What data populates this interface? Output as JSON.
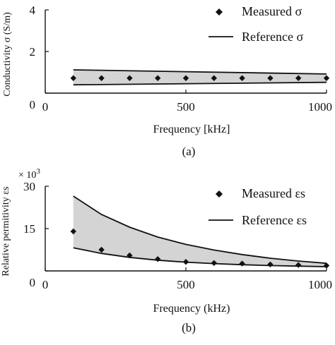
{
  "chart_data": [
    {
      "type": "line",
      "panel_caption": "(a)",
      "xlabel": "Frequency [kHz]",
      "ylabel": "Conductivity σ (S/m)",
      "xlim": [
        0,
        1000
      ],
      "ylim": [
        0,
        4
      ],
      "x_ticks": [
        "0",
        "500",
        "1000"
      ],
      "y_ticks": [
        "0",
        "2",
        "4"
      ],
      "legend": {
        "placement": "top-right",
        "measured": "Measured",
        "measured_symbol": "σ",
        "reference": "Reference",
        "reference_symbol": "σ"
      },
      "measured": {
        "x": [
          100,
          200,
          300,
          400,
          500,
          600,
          700,
          800,
          900,
          1000
        ],
        "y": [
          0.72,
          0.72,
          0.72,
          0.72,
          0.72,
          0.72,
          0.72,
          0.72,
          0.72,
          0.72
        ]
      },
      "reference_band": {
        "x": [
          100,
          1000
        ],
        "upper": [
          1.12,
          0.92
        ],
        "lower": [
          0.4,
          0.52
        ]
      }
    },
    {
      "type": "line",
      "panel_caption": "(b)",
      "xlabel": "Frequency (kHz)",
      "ylabel": "Relative permitivity εs",
      "multiplier": "× 10",
      "multiplier_exp": "3",
      "xlim": [
        0,
        1000
      ],
      "ylim": [
        0,
        30
      ],
      "x_ticks": [
        "0",
        "500",
        "1000"
      ],
      "y_ticks": [
        "0",
        "15",
        "30"
      ],
      "legend": {
        "placement": "top-right",
        "measured": "Measured",
        "measured_symbol": "εs",
        "reference": "Reference",
        "reference_symbol": "εs"
      },
      "measured": {
        "x": [
          100,
          200,
          300,
          400,
          500,
          600,
          700,
          800,
          900,
          1000
        ],
        "y": [
          14.0,
          7.5,
          5.5,
          4.2,
          3.2,
          2.8,
          2.6,
          2.3,
          2.1,
          1.9
        ]
      },
      "reference_band": {
        "x": [
          100,
          200,
          300,
          400,
          500,
          600,
          700,
          800,
          900,
          1000
        ],
        "upper": [
          26.5,
          20.0,
          15.5,
          12.0,
          9.4,
          7.4,
          5.8,
          4.5,
          3.5,
          2.7
        ],
        "lower": [
          8.2,
          6.2,
          4.8,
          3.8,
          3.1,
          2.6,
          2.2,
          1.9,
          1.7,
          1.5
        ]
      }
    }
  ]
}
